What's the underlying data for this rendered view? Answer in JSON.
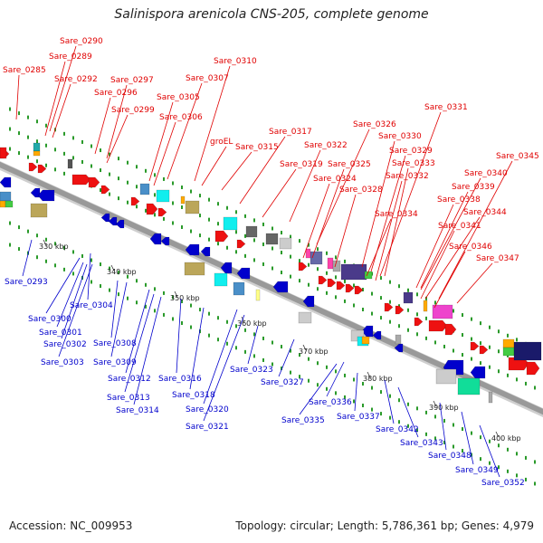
{
  "title": "Salinispora arenicola CNS-205, complete genome",
  "footer": {
    "accession": "Accession: NC_009953",
    "summary": "Topology: circular; Length: 5,786,361 bp; Genes: 4,979"
  },
  "colors": {
    "forward_label": "#e00000",
    "reverse_label": "#0000cc",
    "backbone": "#999999",
    "dots": "#2a9a2a"
  },
  "ticks": [
    "330 kbp",
    "340 kbp",
    "350 kbp",
    "360 kbp",
    "370 kbp",
    "380 kbp",
    "390 kbp",
    "400 kbp"
  ],
  "forward_labels": [
    "Sare_0290",
    "Sare_0289",
    "Sare_0285",
    "Sare_0292",
    "Sare_0297",
    "Sare_0296",
    "Sare_0299",
    "Sare_0310",
    "Sare_0307",
    "Sare_0305",
    "Sare_0306",
    "groEL",
    "Sare_0317",
    "Sare_0315",
    "Sare_0322",
    "Sare_0319",
    "Sare_0326",
    "Sare_0331",
    "Sare_0330",
    "Sare_0329",
    "Sare_0325",
    "Sare_0324",
    "Sare_0333",
    "Sare_0328",
    "Sare_0332",
    "Sare_0345",
    "Sare_0340",
    "Sare_0339",
    "Sare_0338",
    "Sare_0334",
    "Sare_0344",
    "Sare_0341",
    "Sare_0346",
    "Sare_0347"
  ],
  "reverse_labels": [
    "Sare_0293",
    "Sare_0304",
    "Sare_0300",
    "Sare_0301",
    "Sare_0302",
    "Sare_0303",
    "Sare_0308",
    "Sare_0309",
    "Sare_0312",
    "Sare_0313",
    "Sare_0314",
    "Sare_0316",
    "Sare_0318",
    "Sare_0320",
    "Sare_0321",
    "Sare_0323",
    "Sare_0327",
    "Sare_0336",
    "Sare_0335",
    "Sare_0337",
    "Sare_0342",
    "Sare_0343",
    "Sare_0348",
    "Sare_0349",
    "Sare_0352"
  ]
}
